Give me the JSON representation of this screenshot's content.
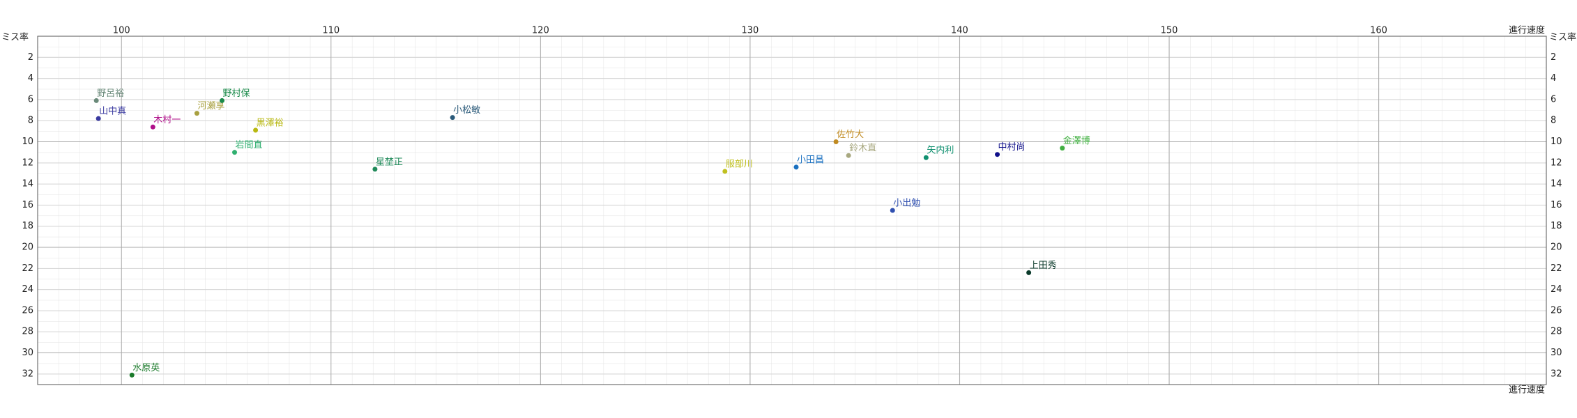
{
  "chart_data": {
    "type": "scatter",
    "x_label": "進行速度",
    "y_label": "ミス率",
    "xlim": [
      96,
      168
    ],
    "xticks": [
      100,
      110,
      120,
      130,
      140,
      150,
      160
    ],
    "ylim": [
      0,
      33
    ],
    "yticks": [
      2,
      4,
      6,
      8,
      10,
      12,
      14,
      16,
      18,
      20,
      22,
      24,
      26,
      28,
      30,
      32
    ],
    "y_inverted": true,
    "grid": true,
    "points": [
      {
        "label": "野呂裕",
        "x": 98.8,
        "y": 6.1,
        "color": "#6a8a7a"
      },
      {
        "label": "山中真",
        "x": 98.9,
        "y": 7.8,
        "color": "#3a3aa0"
      },
      {
        "label": "木村一",
        "x": 101.5,
        "y": 8.6,
        "color": "#b0108a"
      },
      {
        "label": "河瀬享",
        "x": 103.6,
        "y": 7.3,
        "color": "#a8a040"
      },
      {
        "label": "野村保",
        "x": 104.8,
        "y": 6.1,
        "color": "#1a8a4a"
      },
      {
        "label": "黒澤裕",
        "x": 106.4,
        "y": 8.9,
        "color": "#b8b810"
      },
      {
        "label": "岩間直",
        "x": 105.4,
        "y": 11.0,
        "color": "#30b070"
      },
      {
        "label": "星埜正",
        "x": 112.1,
        "y": 12.6,
        "color": "#208a5a"
      },
      {
        "label": "小松敏",
        "x": 115.8,
        "y": 7.7,
        "color": "#2a5a7a"
      },
      {
        "label": "服部川",
        "x": 128.8,
        "y": 12.8,
        "color": "#c0c020"
      },
      {
        "label": "小田昌",
        "x": 132.2,
        "y": 12.4,
        "color": "#1a70c0"
      },
      {
        "label": "佐竹大",
        "x": 134.1,
        "y": 10.0,
        "color": "#c08a20"
      },
      {
        "label": "鈴木直",
        "x": 134.7,
        "y": 11.3,
        "color": "#a8a880"
      },
      {
        "label": "矢内利",
        "x": 138.4,
        "y": 11.5,
        "color": "#109070"
      },
      {
        "label": "小出勉",
        "x": 136.8,
        "y": 16.5,
        "color": "#3050b0"
      },
      {
        "label": "中村尚",
        "x": 141.8,
        "y": 11.2,
        "color": "#10108a"
      },
      {
        "label": "金澤博",
        "x": 144.9,
        "y": 10.6,
        "color": "#40b040"
      },
      {
        "label": "上田秀",
        "x": 143.3,
        "y": 22.4,
        "color": "#0a3a2a"
      },
      {
        "label": "水原英",
        "x": 100.5,
        "y": 32.1,
        "color": "#1a7a2a"
      }
    ]
  }
}
